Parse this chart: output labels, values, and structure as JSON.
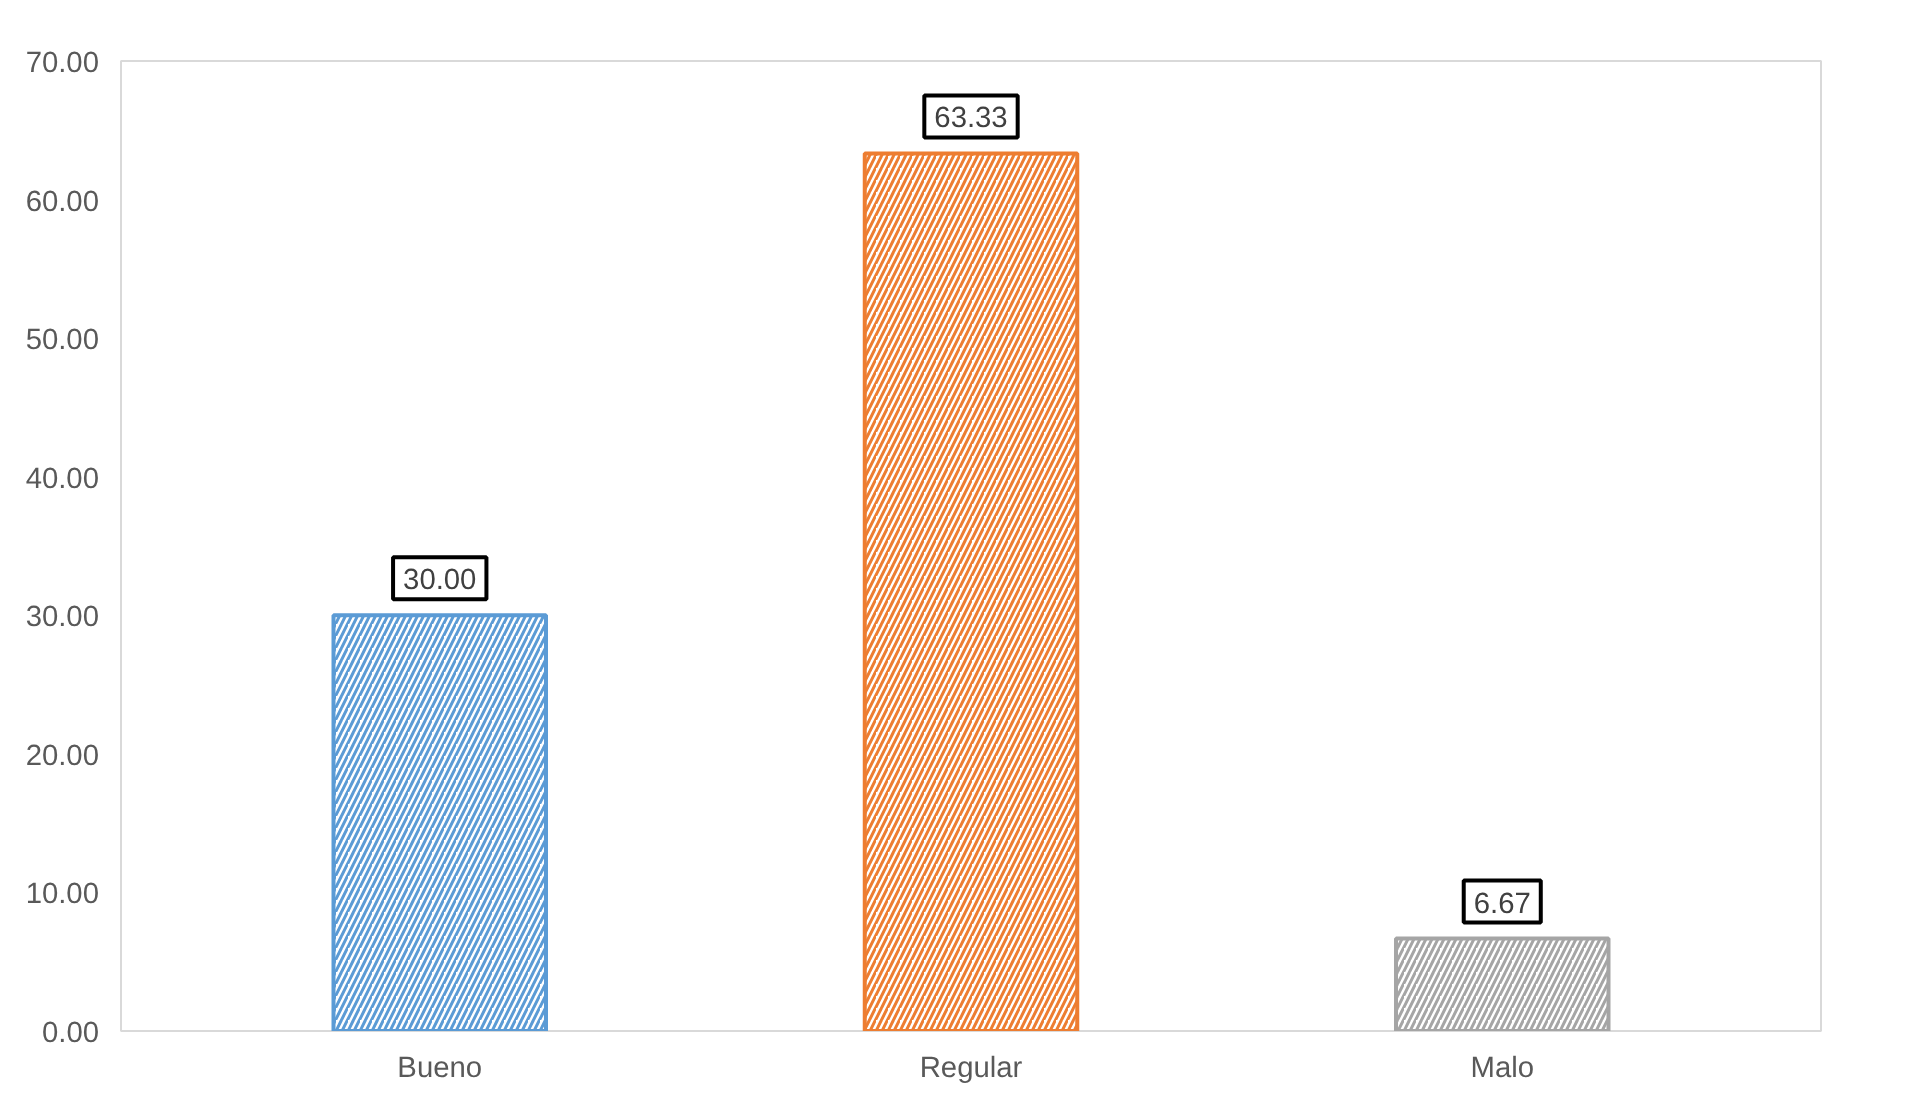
{
  "chart_data": {
    "type": "bar",
    "categories": [
      "Bueno",
      "Regular",
      "Malo"
    ],
    "values": [
      30.0,
      63.33,
      6.67
    ],
    "colors": [
      "#5b9bd5",
      "#ed7d31",
      "#a5a5a5"
    ],
    "value_labels": [
      "30.00",
      "63.33",
      "6.67"
    ],
    "ylim": [
      0,
      70
    ],
    "yticks": [
      {
        "value": 0,
        "label": "0.00"
      },
      {
        "value": 10,
        "label": "10.00"
      },
      {
        "value": 20,
        "label": "20.00"
      },
      {
        "value": 30,
        "label": "30.00"
      },
      {
        "value": 40,
        "label": "40.00"
      },
      {
        "value": 50,
        "label": "50.00"
      },
      {
        "value": 60,
        "label": "60.00"
      },
      {
        "value": 70,
        "label": "70.00"
      }
    ],
    "grid": false
  }
}
